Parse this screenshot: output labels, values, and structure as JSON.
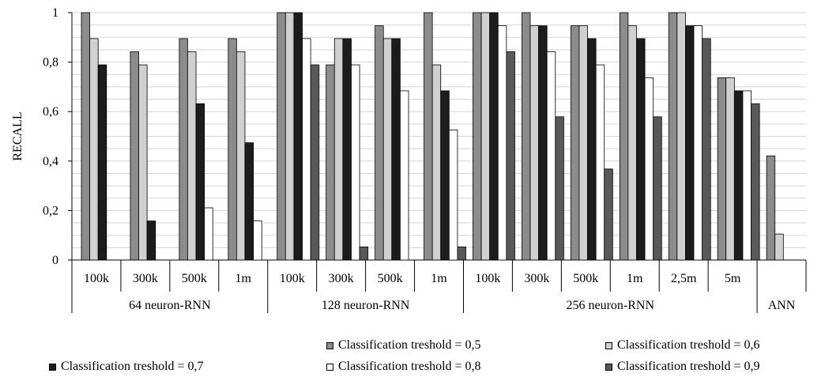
{
  "chart_data": {
    "type": "bar",
    "ylabel": "RECALL",
    "ylim": [
      0,
      1
    ],
    "yticks": [
      0,
      0.2,
      0.4,
      0.6,
      0.8,
      1
    ],
    "ytick_labels": [
      "0",
      "0,2",
      "0,4",
      "0,6",
      "0,8",
      "1"
    ],
    "grid": true,
    "legend_position": "bottom",
    "groups": [
      {
        "label": "64 neuron-RNN",
        "count": 4
      },
      {
        "label": "128 neuron-RNN",
        "count": 4
      },
      {
        "label": "256 neuron-RNN",
        "count": 6
      },
      {
        "label": "ANN",
        "count": 1
      }
    ],
    "categories": [
      "100k",
      "300k",
      "500k",
      "1m",
      "100k",
      "300k",
      "500k",
      "1m",
      "100k",
      "300k",
      "500k",
      "1m",
      "2,5m",
      "5m",
      ""
    ],
    "series": [
      {
        "name": "Classification treshold = 0,5",
        "color": "#8c8c8c",
        "values": [
          1,
          0.842,
          0.895,
          0.895,
          1,
          0.789,
          0.947,
          1,
          1,
          1,
          0.947,
          1,
          1,
          0.737,
          0.421
        ]
      },
      {
        "name": "Classification treshold = 0,6",
        "color": "#d0d0d0",
        "values": [
          0.895,
          0.789,
          0.842,
          0.842,
          1,
          0.895,
          0.895,
          0.789,
          1,
          0.947,
          0.947,
          0.947,
          1,
          0.737,
          0.105
        ]
      },
      {
        "name": "Classification treshold = 0,7",
        "color": "#1c1c1c",
        "values": [
          0.789,
          0.158,
          0.632,
          0.474,
          1,
          0.895,
          0.895,
          0.684,
          1,
          0.947,
          0.895,
          0.895,
          0.947,
          0.684,
          null
        ]
      },
      {
        "name": "Classification treshold = 0,8",
        "color": "#ffffff",
        "values": [
          null,
          null,
          0.211,
          0.158,
          0.895,
          0.789,
          0.684,
          0.526,
          0.947,
          0.842,
          0.789,
          0.737,
          0.947,
          0.684,
          null
        ]
      },
      {
        "name": "Classification treshold = 0,9",
        "color": "#595959",
        "values": [
          null,
          null,
          null,
          null,
          0.789,
          0.053,
          null,
          0.053,
          0.842,
          0.579,
          0.368,
          0.579,
          0.895,
          0.632,
          null
        ]
      }
    ]
  }
}
